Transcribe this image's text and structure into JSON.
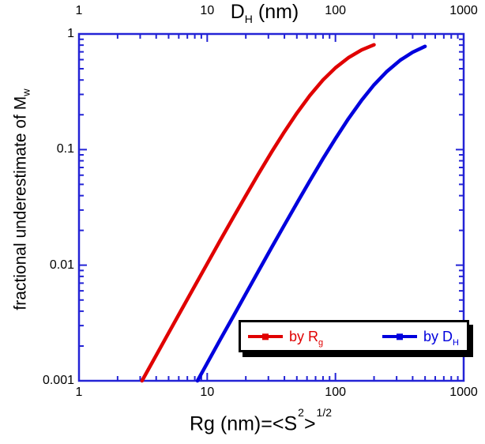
{
  "figure": {
    "background": "#ffffff",
    "frame_color": "#2323d6",
    "text_color": "#000000"
  },
  "chart_data": {
    "type": "line",
    "xscale": "log",
    "yscale": "log",
    "xlim": [
      1,
      1000
    ],
    "ylim": [
      0.001,
      1
    ],
    "grid": false,
    "legend_position": "bottom-right",
    "xlabel_bottom": {
      "pre": "Rg (nm)=<S",
      "sup1": "2",
      "mid": ">",
      "sup2": "1/2"
    },
    "xlabel_top": {
      "main": "D",
      "sub": "H",
      "rest": " (nm)"
    },
    "ylabel": {
      "main": "fractional underestimate of M",
      "sub": "w"
    },
    "x_ticks": [
      {
        "label": "1",
        "value": 1
      },
      {
        "label": "10",
        "value": 10
      },
      {
        "label": "100",
        "value": 100
      },
      {
        "label": "1000",
        "value": 1000
      }
    ],
    "y_ticks": [
      {
        "label": "1",
        "value": 1
      },
      {
        "label": "0.1",
        "value": 0.1
      },
      {
        "label": "0.01",
        "value": 0.01
      },
      {
        "label": "0.001",
        "value": 0.001
      }
    ],
    "series": [
      {
        "name": "by Rg",
        "color": "#e00000",
        "points": [
          [
            3.1,
            0.001
          ],
          [
            4,
            0.00166
          ],
          [
            5,
            0.0026
          ],
          [
            6.3,
            0.00412
          ],
          [
            8,
            0.00662
          ],
          [
            10,
            0.0103
          ],
          [
            12.6,
            0.0163
          ],
          [
            16,
            0.026
          ],
          [
            20,
            0.04
          ],
          [
            25,
            0.0611
          ],
          [
            32,
            0.0963
          ],
          [
            40,
            0.1428
          ],
          [
            50,
            0.2065
          ],
          [
            63,
            0.2924
          ],
          [
            80,
            0.4
          ],
          [
            100,
            0.5101
          ],
          [
            126,
            0.6231
          ],
          [
            160,
            0.7272
          ],
          [
            200,
            0.8064
          ]
        ]
      },
      {
        "name": "by DH",
        "color": "#0000dd",
        "points": [
          [
            8.4,
            0.001
          ],
          [
            10,
            0.00142
          ],
          [
            12.6,
            0.00226
          ],
          [
            16,
            0.00363
          ],
          [
            20,
            0.00566
          ],
          [
            25,
            0.00882
          ],
          [
            32,
            0.0144
          ],
          [
            40,
            0.0223
          ],
          [
            50,
            0.0344
          ],
          [
            63,
            0.0535
          ],
          [
            80,
            0.0835
          ],
          [
            100,
            0.1246
          ],
          [
            126,
            0.1844
          ],
          [
            160,
            0.2672
          ],
          [
            200,
            0.3629
          ],
          [
            250,
            0.4709
          ],
          [
            320,
            0.5932
          ],
          [
            400,
            0.695
          ],
          [
            500,
            0.7807
          ]
        ]
      }
    ]
  },
  "legend": {
    "entries": [
      {
        "label": "by R",
        "sub": "g",
        "color": "#e00000"
      },
      {
        "label": "by D",
        "sub": "H",
        "color": "#0000dd"
      }
    ]
  }
}
